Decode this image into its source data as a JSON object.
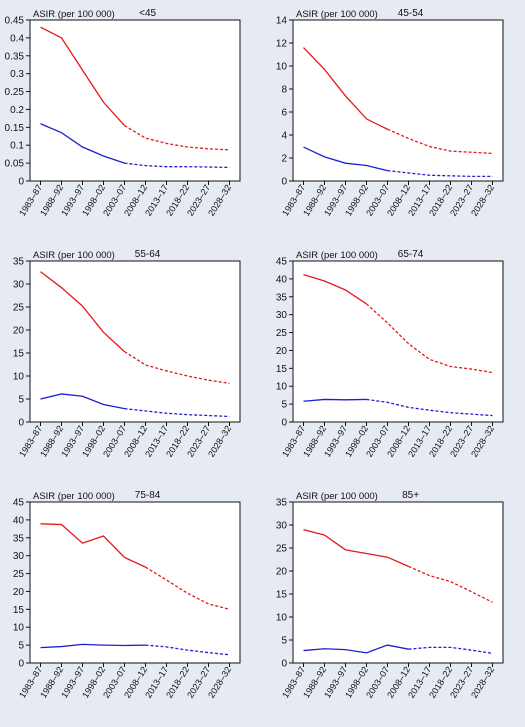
{
  "background": "#e6ebf3",
  "colors": {
    "red": "#e41a1c",
    "blue": "#1f1fd0",
    "axis": "#111111"
  },
  "x_categories": [
    "1983–87",
    "1988–92",
    "1993–97",
    "1998–02",
    "2003–07",
    "2008–12",
    "2013–17",
    "2018–22",
    "2023–27",
    "2028–32"
  ],
  "chart_data": [
    {
      "type": "line",
      "title": "<45",
      "ylabel": "ASIR (per 100 000)",
      "ylim": [
        0,
        0.45
      ],
      "yticks": [
        "0",
        "0.05",
        "0.1",
        "0.15",
        "0.2",
        "0.25",
        "0.3",
        "0.35",
        "0.4",
        "0.45"
      ],
      "categories": [
        "1983–87",
        "1988–92",
        "1993–97",
        "1998–02",
        "2003–07",
        "2008–12",
        "2013–17",
        "2018–22",
        "2023–27",
        "2028–32"
      ],
      "projection_start_index": 4,
      "series": [
        {
          "color": "red",
          "values": [
            0.43,
            0.4,
            0.31,
            0.22,
            0.155,
            0.12,
            0.105,
            0.095,
            0.09,
            0.087
          ]
        },
        {
          "color": "blue",
          "values": [
            0.16,
            0.135,
            0.095,
            0.07,
            0.05,
            0.043,
            0.04,
            0.04,
            0.039,
            0.038
          ]
        }
      ]
    },
    {
      "type": "line",
      "title": "45-54",
      "ylabel": "ASIR (per 100 000)",
      "ylim": [
        0,
        14
      ],
      "yticks": [
        "0",
        "2",
        "4",
        "6",
        "8",
        "10",
        "12",
        "14"
      ],
      "categories": [
        "1983–87",
        "1988–92",
        "1993–97",
        "1998–02",
        "2003–07",
        "2008–12",
        "2013–17",
        "2018–22",
        "2023–27",
        "2028–32"
      ],
      "projection_start_index": 4,
      "series": [
        {
          "color": "red",
          "values": [
            11.6,
            9.7,
            7.4,
            5.4,
            4.5,
            3.7,
            3.0,
            2.6,
            2.5,
            2.4
          ]
        },
        {
          "color": "blue",
          "values": [
            2.95,
            2.1,
            1.55,
            1.35,
            0.9,
            0.7,
            0.5,
            0.45,
            0.4,
            0.4
          ]
        }
      ]
    },
    {
      "type": "line",
      "title": "55-64",
      "ylabel": "ASIR (per 100 000)",
      "ylim": [
        0,
        35
      ],
      "yticks": [
        "0",
        "5",
        "10",
        "15",
        "20",
        "25",
        "30",
        "35"
      ],
      "categories": [
        "1983–87",
        "1988–92",
        "1993–97",
        "1998–02",
        "2003–07",
        "2008–12",
        "2013–17",
        "2018–22",
        "2023–27",
        "2028–32"
      ],
      "projection_start_index": 4,
      "series": [
        {
          "color": "red",
          "values": [
            32.7,
            29.2,
            25.2,
            19.5,
            15.3,
            12.4,
            11.1,
            10.0,
            9.1,
            8.4
          ]
        },
        {
          "color": "blue",
          "values": [
            5.0,
            6.1,
            5.6,
            3.8,
            2.9,
            2.4,
            1.9,
            1.6,
            1.4,
            1.2
          ]
        }
      ]
    },
    {
      "type": "line",
      "title": "65-74",
      "ylabel": "ASIR (per 100 000)",
      "ylim": [
        0,
        45
      ],
      "yticks": [
        "0",
        "5",
        "10",
        "15",
        "20",
        "25",
        "30",
        "35",
        "40",
        "45"
      ],
      "categories": [
        "1983–87",
        "1988–92",
        "1993–97",
        "1998–02",
        "2003–07",
        "2008–12",
        "2013–17",
        "2018–22",
        "2023–27",
        "2028–32"
      ],
      "projection_start_index": 3,
      "series": [
        {
          "color": "red",
          "values": [
            41.2,
            39.4,
            36.9,
            33.0,
            27.7,
            21.9,
            17.5,
            15.5,
            14.8,
            13.8
          ]
        },
        {
          "color": "blue",
          "values": [
            5.8,
            6.3,
            6.2,
            6.3,
            5.5,
            4.1,
            3.3,
            2.6,
            2.2,
            1.8
          ]
        }
      ]
    },
    {
      "type": "line",
      "title": "75-84",
      "ylabel": "ASIR (per 100 000)",
      "ylim": [
        0,
        45
      ],
      "yticks": [
        "0",
        "5",
        "10",
        "15",
        "20",
        "25",
        "30",
        "35",
        "40",
        "45"
      ],
      "categories": [
        "1983–87",
        "1988–92",
        "1993–97",
        "1998–02",
        "2003–07",
        "2008–12",
        "2013–17",
        "2018–22",
        "2023–27",
        "2028–32"
      ],
      "projection_start_index": 5,
      "series": [
        {
          "color": "red",
          "values": [
            38.9,
            38.7,
            33.5,
            35.5,
            29.5,
            26.8,
            23.2,
            19.5,
            16.5,
            15.0
          ]
        },
        {
          "color": "blue",
          "values": [
            4.3,
            4.6,
            5.2,
            5.0,
            4.9,
            5.0,
            4.5,
            3.6,
            2.9,
            2.3
          ]
        }
      ]
    },
    {
      "type": "line",
      "title": "85+",
      "ylabel": "ASIR (per 100 000)",
      "ylim": [
        0,
        35
      ],
      "yticks": [
        "0",
        "5",
        "10",
        "15",
        "20",
        "25",
        "30",
        "35"
      ],
      "categories": [
        "1983–87",
        "1988–92",
        "1993–97",
        "1998–02",
        "2003–07",
        "2008–12",
        "2013–17",
        "2018–22",
        "2023–27",
        "2028–32"
      ],
      "projection_start_index": 5,
      "series": [
        {
          "color": "red",
          "values": [
            29.0,
            27.8,
            24.6,
            23.8,
            23.0,
            21.0,
            19.0,
            17.7,
            15.5,
            13.2
          ]
        },
        {
          "color": "blue",
          "values": [
            2.7,
            3.1,
            2.9,
            2.2,
            3.9,
            3.0,
            3.4,
            3.4,
            2.8,
            2.1
          ]
        }
      ]
    }
  ]
}
